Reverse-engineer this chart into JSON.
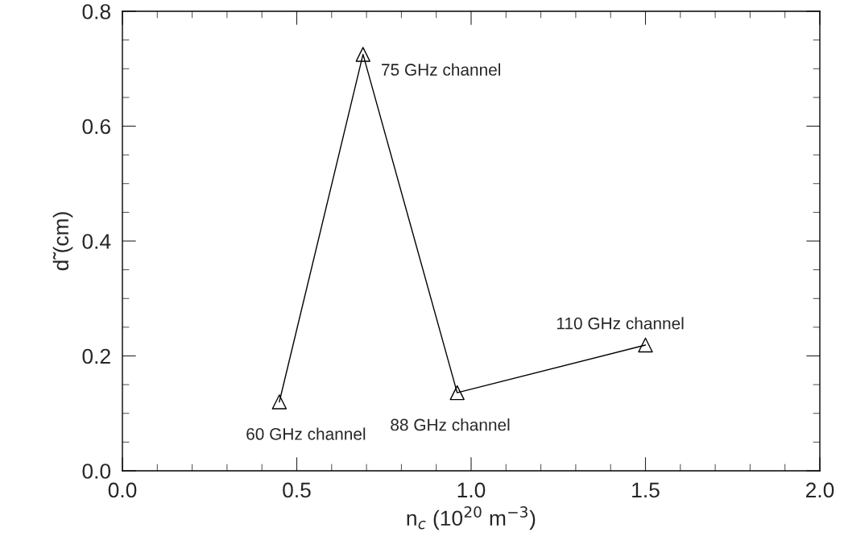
{
  "chart_data": {
    "type": "line",
    "xlabel": "n$_{c}$ (10$^{20}$ m$^{−3}$)",
    "ylabel": "d̃ (cm)",
    "x": [
      0.45,
      0.69,
      0.96,
      1.5
    ],
    "series": [
      {
        "color": "#000000",
        "values": [
          0.12,
          0.725,
          0.136,
          0.219
        ]
      }
    ],
    "marker": "triangle",
    "line_style": "solid",
    "grid": false,
    "legend": false,
    "xlim": [
      0.0,
      2.0
    ],
    "xticks": [
      {
        "value": 0.0,
        "label": "0.0"
      },
      0.5,
      {
        "value": 1.0,
        "label": "1.0"
      },
      1.5,
      {
        "value": 2.0,
        "label": "2.0"
      }
    ],
    "ylim": [
      0.0,
      0.8
    ],
    "yticks": [
      {
        "value": 0.0,
        "label": "0.0"
      },
      0.2,
      0.4,
      0.6,
      0.8
    ],
    "annotations": [
      {
        "text": "60 GHz channel",
        "x": 0.45,
        "y": 0.12
      },
      {
        "text": "75 GHz channel",
        "x": 0.69,
        "y": 0.725
      },
      {
        "text": "88 GHz channel",
        "x": 0.96,
        "y": 0.136
      },
      {
        "text": "110 GHz channel",
        "x": 1.5,
        "y": 0.219
      }
    ]
  }
}
